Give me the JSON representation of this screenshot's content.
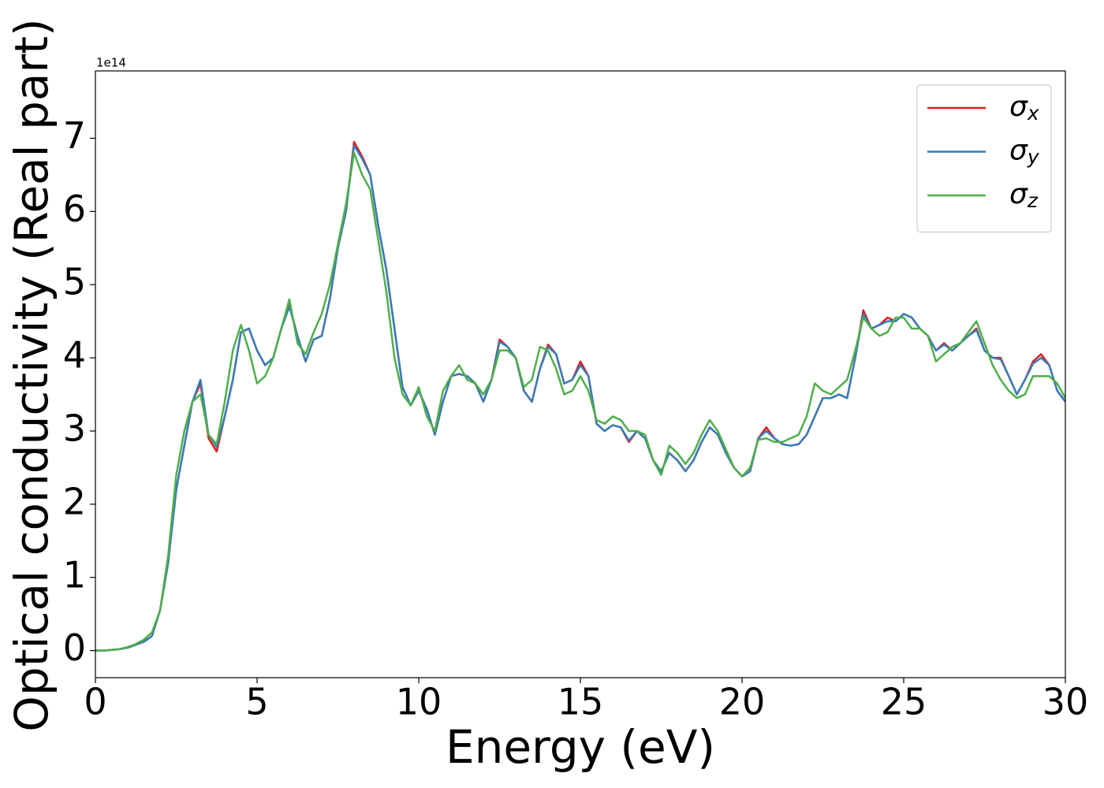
{
  "chart_data": {
    "type": "line",
    "xlabel": "Energy (eV)",
    "ylabel": "Optical conductivity (Real part)",
    "y_offset_label": "1e14",
    "x": [
      0,
      0.25,
      0.5,
      0.75,
      1,
      1.25,
      1.5,
      1.75,
      2,
      2.25,
      2.5,
      2.75,
      3,
      3.25,
      3.5,
      3.75,
      4,
      4.25,
      4.5,
      4.75,
      5,
      5.25,
      5.5,
      5.75,
      6,
      6.25,
      6.5,
      6.75,
      7,
      7.25,
      7.5,
      7.75,
      8,
      8.25,
      8.5,
      8.75,
      9,
      9.25,
      9.5,
      9.75,
      10,
      10.25,
      10.5,
      10.75,
      11,
      11.25,
      11.5,
      11.75,
      12,
      12.25,
      12.5,
      12.75,
      13,
      13.25,
      13.5,
      13.75,
      14,
      14.25,
      14.5,
      14.75,
      15,
      15.25,
      15.5,
      15.75,
      16,
      16.25,
      16.5,
      16.75,
      17,
      17.25,
      17.5,
      17.75,
      18,
      18.25,
      18.5,
      18.75,
      19,
      19.25,
      19.5,
      19.75,
      20,
      20.25,
      20.5,
      20.75,
      21,
      21.25,
      21.5,
      21.75,
      22,
      22.25,
      22.5,
      22.75,
      23,
      23.25,
      23.5,
      23.75,
      24,
      24.25,
      24.5,
      24.75,
      25,
      25.25,
      25.5,
      25.75,
      26,
      26.25,
      26.5,
      26.75,
      27,
      27.25,
      27.5,
      27.75,
      28,
      28.25,
      28.5,
      28.75,
      29,
      29.25,
      29.5,
      29.75,
      30
    ],
    "series": [
      {
        "name": "σx",
        "color": "#e41a1c",
        "values": [
          0,
          0,
          0.01,
          0.02,
          0.04,
          0.08,
          0.12,
          0.2,
          0.55,
          1.2,
          2.2,
          2.8,
          3.4,
          3.65,
          2.9,
          2.72,
          3.2,
          3.7,
          4.35,
          4.4,
          4.1,
          3.9,
          4.0,
          4.4,
          4.72,
          4.3,
          3.95,
          4.25,
          4.3,
          4.8,
          5.5,
          6.0,
          6.95,
          6.75,
          6.5,
          5.8,
          5.2,
          4.4,
          3.6,
          3.35,
          3.55,
          3.3,
          2.95,
          3.4,
          3.75,
          3.78,
          3.75,
          3.65,
          3.4,
          3.7,
          4.25,
          4.15,
          4.0,
          3.55,
          3.4,
          3.85,
          4.18,
          4.05,
          3.65,
          3.7,
          3.95,
          3.75,
          3.1,
          3.0,
          3.08,
          3.05,
          2.85,
          3.0,
          2.9,
          2.6,
          2.45,
          2.7,
          2.6,
          2.45,
          2.6,
          2.85,
          3.05,
          2.95,
          2.7,
          2.5,
          2.38,
          2.45,
          2.9,
          3.05,
          2.9,
          2.82,
          2.8,
          2.82,
          2.95,
          3.2,
          3.45,
          3.45,
          3.5,
          3.45,
          4.0,
          4.65,
          4.4,
          4.45,
          4.55,
          4.5,
          4.6,
          4.55,
          4.4,
          4.3,
          4.1,
          4.2,
          4.1,
          4.2,
          4.3,
          4.4,
          4.1,
          4.0,
          4.0,
          3.75,
          3.5,
          3.7,
          3.95,
          4.05,
          3.9,
          3.55,
          3.4
        ]
      },
      {
        "name": "σy",
        "color": "#377eb8",
        "values": [
          0,
          0,
          0.01,
          0.02,
          0.04,
          0.08,
          0.12,
          0.2,
          0.55,
          1.2,
          2.2,
          2.8,
          3.4,
          3.7,
          2.95,
          2.78,
          3.2,
          3.7,
          4.35,
          4.4,
          4.1,
          3.9,
          4.0,
          4.4,
          4.7,
          4.3,
          3.95,
          4.25,
          4.3,
          4.8,
          5.5,
          6.0,
          6.9,
          6.72,
          6.5,
          5.8,
          5.2,
          4.4,
          3.6,
          3.35,
          3.55,
          3.3,
          2.95,
          3.4,
          3.75,
          3.78,
          3.75,
          3.65,
          3.4,
          3.7,
          4.22,
          4.15,
          4.0,
          3.55,
          3.4,
          3.85,
          4.15,
          4.05,
          3.65,
          3.7,
          3.9,
          3.75,
          3.1,
          3.0,
          3.08,
          3.05,
          2.87,
          3.0,
          2.9,
          2.6,
          2.45,
          2.7,
          2.6,
          2.45,
          2.6,
          2.85,
          3.05,
          2.95,
          2.7,
          2.5,
          2.38,
          2.45,
          2.9,
          3.0,
          2.9,
          2.82,
          2.8,
          2.82,
          2.95,
          3.2,
          3.45,
          3.45,
          3.5,
          3.45,
          4.0,
          4.6,
          4.4,
          4.45,
          4.5,
          4.5,
          4.6,
          4.55,
          4.4,
          4.3,
          4.1,
          4.18,
          4.1,
          4.2,
          4.3,
          4.38,
          4.1,
          4.0,
          3.98,
          3.75,
          3.5,
          3.7,
          3.92,
          4.0,
          3.9,
          3.55,
          3.4
        ]
      },
      {
        "name": "σz",
        "color": "#4daf4a",
        "values": [
          0,
          0,
          0.01,
          0.02,
          0.05,
          0.09,
          0.15,
          0.25,
          0.55,
          1.3,
          2.4,
          3.0,
          3.4,
          3.5,
          2.95,
          2.82,
          3.4,
          4.1,
          4.45,
          4.1,
          3.65,
          3.75,
          4.0,
          4.4,
          4.8,
          4.2,
          4.05,
          4.35,
          4.6,
          5.0,
          5.55,
          6.1,
          6.8,
          6.5,
          6.3,
          5.6,
          4.9,
          4.0,
          3.5,
          3.35,
          3.6,
          3.2,
          3.0,
          3.55,
          3.75,
          3.9,
          3.7,
          3.65,
          3.5,
          3.7,
          4.1,
          4.1,
          4.0,
          3.6,
          3.7,
          4.15,
          4.1,
          3.85,
          3.5,
          3.55,
          3.75,
          3.55,
          3.15,
          3.1,
          3.2,
          3.15,
          3.0,
          3.0,
          2.95,
          2.6,
          2.4,
          2.8,
          2.7,
          2.55,
          2.7,
          2.95,
          3.15,
          3.0,
          2.75,
          2.5,
          2.38,
          2.5,
          2.88,
          2.9,
          2.85,
          2.85,
          2.9,
          2.95,
          3.2,
          3.65,
          3.55,
          3.5,
          3.6,
          3.7,
          4.1,
          4.55,
          4.4,
          4.3,
          4.35,
          4.55,
          4.55,
          4.4,
          4.4,
          4.3,
          3.95,
          4.05,
          4.15,
          4.2,
          4.35,
          4.5,
          4.2,
          3.9,
          3.7,
          3.55,
          3.45,
          3.5,
          3.75,
          3.75,
          3.75,
          3.65,
          3.45
        ]
      }
    ],
    "xlim": [
      0,
      30
    ],
    "xticks": [
      0,
      5,
      10,
      15,
      20,
      25,
      30
    ],
    "ylim": [
      -0.37,
      7.92
    ],
    "yticks": [
      0,
      1,
      2,
      3,
      4,
      5,
      6,
      7
    ],
    "legend": "upper right"
  }
}
